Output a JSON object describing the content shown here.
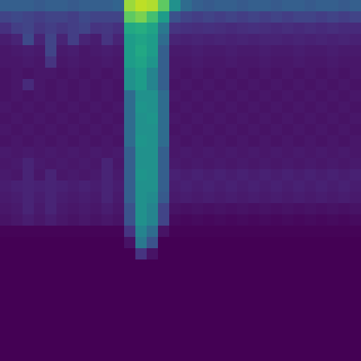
{
  "chart_data": {
    "type": "heatmap",
    "tick_labels": false,
    "color": "viridis",
    "color_range": [
      0,
      1
    ],
    "cells": [
      [
        0.3,
        0.3,
        0.3,
        0.28,
        0.3,
        0.3,
        0.28,
        0.3,
        0.3,
        0.3,
        0.32,
        0.85,
        0.9,
        0.88,
        0.75,
        0.5,
        0.35,
        0.3,
        0.28,
        0.3,
        0.3,
        0.28,
        0.3,
        0.3,
        0.28,
        0.3,
        0.3,
        0.28,
        0.3,
        0.3,
        0.28,
        0.3
      ],
      [
        0.2,
        0.22,
        0.2,
        0.18,
        0.2,
        0.2,
        0.18,
        0.22,
        0.2,
        0.2,
        0.2,
        0.75,
        0.8,
        0.7,
        0.55,
        0.25,
        0.2,
        0.18,
        0.2,
        0.18,
        0.2,
        0.18,
        0.2,
        0.18,
        0.2,
        0.18,
        0.2,
        0.2,
        0.18,
        0.2,
        0.18,
        0.2
      ],
      [
        0.14,
        0.18,
        0.2,
        0.16,
        0.18,
        0.16,
        0.18,
        0.2,
        0.15,
        0.16,
        0.14,
        0.6,
        0.62,
        0.58,
        0.4,
        0.15,
        0.14,
        0.13,
        0.14,
        0.13,
        0.12,
        0.13,
        0.14,
        0.13,
        0.12,
        0.13,
        0.12,
        0.13,
        0.12,
        0.13,
        0.12,
        0.12
      ],
      [
        0.08,
        0.1,
        0.22,
        0.1,
        0.2,
        0.1,
        0.18,
        0.1,
        0.08,
        0.15,
        0.1,
        0.55,
        0.58,
        0.55,
        0.35,
        0.1,
        0.09,
        0.1,
        0.09,
        0.1,
        0.09,
        0.1,
        0.09,
        0.1,
        0.1,
        0.09,
        0.1,
        0.09,
        0.1,
        0.09,
        0.1,
        0.09
      ],
      [
        0.06,
        0.07,
        0.08,
        0.07,
        0.2,
        0.07,
        0.08,
        0.06,
        0.07,
        0.08,
        0.07,
        0.55,
        0.6,
        0.55,
        0.3,
        0.07,
        0.07,
        0.08,
        0.07,
        0.07,
        0.08,
        0.07,
        0.07,
        0.08,
        0.07,
        0.07,
        0.08,
        0.07,
        0.07,
        0.08,
        0.07,
        0.07
      ],
      [
        0.06,
        0.06,
        0.07,
        0.06,
        0.15,
        0.06,
        0.07,
        0.06,
        0.06,
        0.07,
        0.06,
        0.55,
        0.58,
        0.52,
        0.3,
        0.06,
        0.06,
        0.07,
        0.06,
        0.06,
        0.07,
        0.06,
        0.06,
        0.07,
        0.06,
        0.06,
        0.07,
        0.06,
        0.06,
        0.07,
        0.06,
        0.06
      ],
      [
        0.05,
        0.06,
        0.05,
        0.06,
        0.06,
        0.05,
        0.06,
        0.05,
        0.06,
        0.05,
        0.06,
        0.5,
        0.55,
        0.45,
        0.3,
        0.06,
        0.05,
        0.06,
        0.05,
        0.06,
        0.05,
        0.06,
        0.05,
        0.06,
        0.05,
        0.06,
        0.05,
        0.06,
        0.05,
        0.06,
        0.05,
        0.06
      ],
      [
        0.05,
        0.06,
        0.12,
        0.06,
        0.05,
        0.06,
        0.05,
        0.06,
        0.05,
        0.06,
        0.05,
        0.5,
        0.55,
        0.45,
        0.3,
        0.05,
        0.06,
        0.05,
        0.06,
        0.05,
        0.06,
        0.05,
        0.06,
        0.05,
        0.06,
        0.05,
        0.06,
        0.05,
        0.06,
        0.05,
        0.06,
        0.05
      ],
      [
        0.05,
        0.06,
        0.05,
        0.06,
        0.05,
        0.06,
        0.05,
        0.06,
        0.05,
        0.06,
        0.05,
        0.35,
        0.5,
        0.5,
        0.35,
        0.06,
        0.05,
        0.06,
        0.05,
        0.06,
        0.05,
        0.06,
        0.05,
        0.06,
        0.05,
        0.06,
        0.05,
        0.06,
        0.05,
        0.06,
        0.05,
        0.06
      ],
      [
        0.06,
        0.05,
        0.06,
        0.05,
        0.06,
        0.05,
        0.06,
        0.05,
        0.06,
        0.05,
        0.06,
        0.35,
        0.52,
        0.5,
        0.35,
        0.05,
        0.06,
        0.05,
        0.06,
        0.05,
        0.06,
        0.05,
        0.06,
        0.05,
        0.06,
        0.05,
        0.06,
        0.05,
        0.06,
        0.05,
        0.06,
        0.05
      ],
      [
        0.05,
        0.06,
        0.05,
        0.06,
        0.05,
        0.06,
        0.05,
        0.06,
        0.05,
        0.06,
        0.05,
        0.35,
        0.5,
        0.52,
        0.35,
        0.06,
        0.05,
        0.06,
        0.05,
        0.06,
        0.05,
        0.06,
        0.05,
        0.06,
        0.05,
        0.06,
        0.05,
        0.06,
        0.05,
        0.06,
        0.05,
        0.06
      ],
      [
        0.06,
        0.05,
        0.06,
        0.05,
        0.06,
        0.05,
        0.06,
        0.05,
        0.06,
        0.05,
        0.06,
        0.35,
        0.5,
        0.5,
        0.35,
        0.05,
        0.06,
        0.05,
        0.06,
        0.05,
        0.06,
        0.05,
        0.06,
        0.05,
        0.06,
        0.05,
        0.06,
        0.05,
        0.06,
        0.05,
        0.06,
        0.05
      ],
      [
        0.05,
        0.06,
        0.05,
        0.06,
        0.05,
        0.06,
        0.05,
        0.06,
        0.05,
        0.06,
        0.05,
        0.35,
        0.52,
        0.5,
        0.35,
        0.06,
        0.05,
        0.06,
        0.05,
        0.06,
        0.05,
        0.06,
        0.05,
        0.06,
        0.05,
        0.06,
        0.05,
        0.06,
        0.05,
        0.06,
        0.05,
        0.06
      ],
      [
        0.07,
        0.06,
        0.07,
        0.06,
        0.07,
        0.06,
        0.07,
        0.06,
        0.07,
        0.06,
        0.07,
        0.3,
        0.5,
        0.5,
        0.3,
        0.06,
        0.07,
        0.06,
        0.07,
        0.06,
        0.07,
        0.06,
        0.07,
        0.06,
        0.07,
        0.06,
        0.07,
        0.06,
        0.07,
        0.06,
        0.07,
        0.06
      ],
      [
        0.06,
        0.07,
        0.1,
        0.07,
        0.06,
        0.07,
        0.06,
        0.07,
        0.06,
        0.1,
        0.06,
        0.3,
        0.5,
        0.5,
        0.3,
        0.07,
        0.06,
        0.07,
        0.06,
        0.07,
        0.06,
        0.07,
        0.06,
        0.07,
        0.06,
        0.07,
        0.06,
        0.07,
        0.06,
        0.07,
        0.06,
        0.07
      ],
      [
        0.07,
        0.06,
        0.1,
        0.06,
        0.1,
        0.06,
        0.07,
        0.06,
        0.07,
        0.1,
        0.07,
        0.3,
        0.52,
        0.5,
        0.3,
        0.09,
        0.08,
        0.09,
        0.08,
        0.09,
        0.08,
        0.09,
        0.08,
        0.09,
        0.08,
        0.09,
        0.08,
        0.09,
        0.08,
        0.09,
        0.08,
        0.09
      ],
      [
        0.08,
        0.09,
        0.1,
        0.09,
        0.1,
        0.09,
        0.08,
        0.09,
        0.08,
        0.1,
        0.08,
        0.3,
        0.5,
        0.5,
        0.3,
        0.08,
        0.09,
        0.08,
        0.09,
        0.08,
        0.09,
        0.08,
        0.09,
        0.08,
        0.09,
        0.08,
        0.09,
        0.08,
        0.09,
        0.08,
        0.09,
        0.08
      ],
      [
        0.07,
        0.08,
        0.1,
        0.08,
        0.1,
        0.08,
        0.07,
        0.08,
        0.07,
        0.1,
        0.07,
        0.3,
        0.5,
        0.48,
        0.28,
        0.07,
        0.08,
        0.07,
        0.08,
        0.07,
        0.08,
        0.07,
        0.08,
        0.07,
        0.08,
        0.07,
        0.08,
        0.07,
        0.08,
        0.07,
        0.08,
        0.07
      ],
      [
        0.06,
        0.07,
        0.1,
        0.07,
        0.1,
        0.07,
        0.06,
        0.07,
        0.06,
        0.08,
        0.06,
        0.25,
        0.5,
        0.45,
        0.2,
        0.05,
        0.04,
        0.05,
        0.04,
        0.05,
        0.04,
        0.05,
        0.04,
        0.05,
        0.04,
        0.05,
        0.04,
        0.05,
        0.04,
        0.05,
        0.04,
        0.05
      ],
      [
        0.05,
        0.06,
        0.08,
        0.06,
        0.08,
        0.06,
        0.05,
        0.06,
        0.05,
        0.06,
        0.05,
        0.25,
        0.5,
        0.45,
        0.2,
        0.03,
        0.02,
        0.03,
        0.02,
        0.03,
        0.02,
        0.03,
        0.02,
        0.03,
        0.02,
        0.03,
        0.02,
        0.03,
        0.02,
        0.03,
        0.02,
        0.03
      ],
      [
        0.01,
        0.01,
        0.01,
        0.01,
        0.01,
        0.01,
        0.01,
        0.01,
        0.01,
        0.01,
        0.01,
        0.15,
        0.45,
        0.35,
        0.05,
        0.01,
        0.01,
        0.01,
        0.01,
        0.01,
        0.01,
        0.01,
        0.01,
        0.01,
        0.01,
        0.01,
        0.01,
        0.01,
        0.01,
        0.01,
        0.01,
        0.01
      ],
      [
        0,
        0,
        0,
        0,
        0,
        0,
        0,
        0,
        0,
        0,
        0,
        0.05,
        0.4,
        0.25,
        0,
        0,
        0,
        0,
        0,
        0,
        0,
        0,
        0,
        0,
        0,
        0,
        0,
        0,
        0,
        0,
        0,
        0
      ],
      [
        0,
        0,
        0,
        0,
        0,
        0,
        0,
        0,
        0,
        0,
        0,
        0,
        0.15,
        0.05,
        0,
        0,
        0,
        0,
        0,
        0,
        0,
        0,
        0,
        0,
        0,
        0,
        0,
        0,
        0,
        0,
        0,
        0
      ],
      [
        0,
        0,
        0,
        0,
        0,
        0,
        0,
        0,
        0,
        0,
        0,
        0,
        0,
        0,
        0,
        0,
        0,
        0,
        0,
        0,
        0,
        0,
        0,
        0,
        0,
        0,
        0,
        0,
        0,
        0,
        0,
        0
      ],
      [
        0,
        0,
        0,
        0,
        0,
        0,
        0,
        0,
        0,
        0,
        0,
        0,
        0,
        0,
        0,
        0,
        0,
        0,
        0,
        0,
        0,
        0,
        0,
        0,
        0,
        0,
        0,
        0,
        0,
        0,
        0,
        0
      ],
      [
        0,
        0,
        0,
        0,
        0,
        0,
        0,
        0,
        0,
        0,
        0,
        0,
        0,
        0,
        0,
        0,
        0,
        0,
        0,
        0,
        0,
        0,
        0,
        0,
        0,
        0,
        0,
        0,
        0,
        0,
        0,
        0
      ],
      [
        0,
        0,
        0,
        0,
        0,
        0,
        0,
        0,
        0,
        0,
        0,
        0,
        0,
        0,
        0,
        0,
        0,
        0,
        0,
        0,
        0,
        0,
        0,
        0,
        0,
        0,
        0,
        0,
        0,
        0,
        0,
        0
      ],
      [
        0,
        0,
        0,
        0,
        0,
        0,
        0,
        0,
        0,
        0,
        0,
        0,
        0,
        0,
        0,
        0,
        0,
        0,
        0,
        0,
        0,
        0,
        0,
        0,
        0,
        0,
        0,
        0,
        0,
        0,
        0,
        0
      ],
      [
        0,
        0,
        0,
        0,
        0,
        0,
        0,
        0,
        0,
        0,
        0,
        0,
        0,
        0,
        0,
        0,
        0,
        0,
        0,
        0,
        0,
        0,
        0,
        0,
        0,
        0,
        0,
        0,
        0,
        0,
        0,
        0
      ],
      [
        0,
        0,
        0,
        0,
        0,
        0,
        0,
        0,
        0,
        0,
        0,
        0,
        0,
        0,
        0,
        0,
        0,
        0,
        0,
        0,
        0,
        0,
        0,
        0,
        0,
        0,
        0,
        0,
        0,
        0,
        0,
        0
      ],
      [
        0,
        0,
        0,
        0,
        0,
        0,
        0,
        0,
        0,
        0,
        0,
        0,
        0,
        0,
        0,
        0,
        0,
        0,
        0,
        0,
        0,
        0,
        0,
        0,
        0,
        0,
        0,
        0,
        0,
        0,
        0,
        0
      ],
      [
        0,
        0,
        0,
        0,
        0,
        0,
        0,
        0,
        0,
        0,
        0,
        0,
        0,
        0,
        0,
        0,
        0,
        0,
        0,
        0,
        0,
        0,
        0,
        0,
        0,
        0,
        0,
        0,
        0,
        0,
        0,
        0
      ]
    ]
  }
}
